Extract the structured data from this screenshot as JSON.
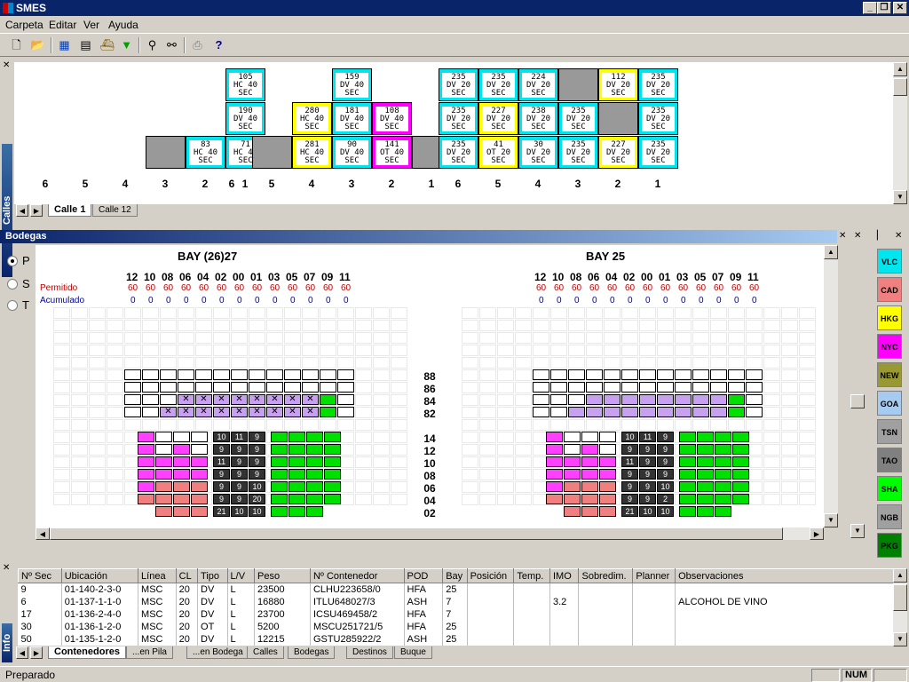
{
  "app": {
    "title": "SMES"
  },
  "window_buttons": {
    "minimize": "_",
    "restore": "❐",
    "close": "✕"
  },
  "menu": [
    "Carpeta",
    "Editar",
    "Ver",
    "Ayuda"
  ],
  "calles": {
    "caption": "Calles",
    "tabs": [
      "Calle 1",
      "Calle 12"
    ],
    "row_numbers": [
      "6",
      "5",
      "4",
      "3",
      "2",
      "1"
    ],
    "bays": [
      {
        "cells": [
          {
            "col": 1,
            "row": 0,
            "text": [
              "105",
              "HC 40",
              "SEC"
            ],
            "color": "c"
          },
          {
            "col": 1,
            "row": 1,
            "text": [
              "190",
              "DV 40",
              "SEC"
            ],
            "color": "c"
          },
          {
            "col": 1,
            "row": 2,
            "text": [
              "71",
              "HC 40",
              "SEC"
            ],
            "color": "c"
          },
          {
            "col": 2,
            "row": 2,
            "text": [
              "83",
              "HC 40",
              "SEC"
            ],
            "color": "c"
          },
          {
            "col": 3,
            "row": 2,
            "text": [
              "",
              "",
              ""
            ],
            "color": "g"
          }
        ]
      },
      {
        "cells": [
          {
            "col": 3,
            "row": 0,
            "text": [
              "159",
              "DV 40",
              "SEC"
            ],
            "color": "c"
          },
          {
            "col": 3,
            "row": 1,
            "text": [
              "181",
              "DV 40",
              "SEC"
            ],
            "color": "c"
          },
          {
            "col": 3,
            "row": 2,
            "text": [
              "90",
              "DV 40",
              "SEC"
            ],
            "color": "c"
          },
          {
            "col": 4,
            "row": 1,
            "text": [
              "280",
              "HC 40",
              "SEC"
            ],
            "color": "y"
          },
          {
            "col": 4,
            "row": 2,
            "text": [
              "281",
              "HC 40",
              "SEC"
            ],
            "color": "y"
          },
          {
            "col": 2,
            "row": 1,
            "text": [
              "108",
              "DV 40",
              "SEC"
            ],
            "color": "m"
          },
          {
            "col": 2,
            "row": 2,
            "text": [
              "141",
              "OT 40",
              "SEC"
            ],
            "color": "m"
          },
          {
            "col": 5,
            "row": 2,
            "text": [
              "",
              "",
              ""
            ],
            "color": "g"
          },
          {
            "col": 1,
            "row": 2,
            "text": [
              "",
              "",
              ""
            ],
            "color": "g"
          }
        ]
      },
      {
        "cells": [
          {
            "col": 6,
            "row": 0,
            "text": [
              "235",
              "DV 20",
              "SEC"
            ],
            "color": "c"
          },
          {
            "col": 5,
            "row": 0,
            "text": [
              "235",
              "DV 20",
              "SEC"
            ],
            "color": "c"
          },
          {
            "col": 4,
            "row": 0,
            "text": [
              "224",
              "DV 20",
              "SEC"
            ],
            "color": "c"
          },
          {
            "col": 3,
            "row": 0,
            "text": [
              "",
              "",
              ""
            ],
            "color": "g"
          },
          {
            "col": 2,
            "row": 0,
            "text": [
              "112",
              "DV 20",
              "SEC"
            ],
            "color": "y"
          },
          {
            "col": 1,
            "row": 0,
            "text": [
              "235",
              "DV 20",
              "SEC"
            ],
            "color": "c"
          },
          {
            "col": 6,
            "row": 1,
            "text": [
              "235",
              "DV 20",
              "SEC"
            ],
            "color": "c"
          },
          {
            "col": 5,
            "row": 1,
            "text": [
              "227",
              "DV 20",
              "SEC"
            ],
            "color": "y"
          },
          {
            "col": 4,
            "row": 1,
            "text": [
              "238",
              "DV 20",
              "SEC"
            ],
            "color": "c"
          },
          {
            "col": 3,
            "row": 1,
            "text": [
              "235",
              "DV 20",
              "SEC"
            ],
            "color": "c"
          },
          {
            "col": 2,
            "row": 1,
            "text": [
              "",
              "",
              ""
            ],
            "color": "g"
          },
          {
            "col": 1,
            "row": 1,
            "text": [
              "235",
              "DV 20",
              "SEC"
            ],
            "color": "c"
          },
          {
            "col": 6,
            "row": 2,
            "text": [
              "235",
              "DV 20",
              "SEC"
            ],
            "color": "c"
          },
          {
            "col": 5,
            "row": 2,
            "text": [
              "41",
              "OT 20",
              "SEC"
            ],
            "color": "y"
          },
          {
            "col": 4,
            "row": 2,
            "text": [
              "30",
              "DV 20",
              "SEC"
            ],
            "color": "c"
          },
          {
            "col": 3,
            "row": 2,
            "text": [
              "235",
              "DV 20",
              "SEC"
            ],
            "color": "c"
          },
          {
            "col": 2,
            "row": 2,
            "text": [
              "227",
              "DV 20",
              "SEC"
            ],
            "color": "y"
          },
          {
            "col": 1,
            "row": 2,
            "text": [
              "235",
              "DV 20",
              "SEC"
            ],
            "color": "c"
          }
        ]
      }
    ]
  },
  "bodegas": {
    "title": "Bodegas",
    "radios": [
      {
        "label": "P",
        "checked": true
      },
      {
        "label": "S",
        "checked": false
      },
      {
        "label": "T",
        "checked": false
      }
    ],
    "permitido_label": "Permitido",
    "acumulado_label": "Acumulado",
    "tier_labels_deck": [
      "88",
      "86",
      "84",
      "82"
    ],
    "tier_labels_hold": [
      "14",
      "12",
      "10",
      "08",
      "06",
      "04",
      "02"
    ],
    "bays": [
      {
        "title": "BAY (26)27",
        "rows": [
          "12",
          "10",
          "08",
          "06",
          "04",
          "02",
          "00",
          "01",
          "03",
          "05",
          "07",
          "09",
          "11"
        ],
        "permitido": [
          "60",
          "60",
          "60",
          "60",
          "60",
          "60",
          "60",
          "60",
          "60",
          "60",
          "60",
          "60",
          "60"
        ],
        "acumulado": [
          "0",
          "0",
          "0",
          "0",
          "0",
          "0",
          "0",
          "0",
          "0",
          "0",
          "0",
          "0",
          "0"
        ],
        "hold_numbers": [
          [
            "10",
            "11",
            "9"
          ],
          [
            "9",
            "9",
            "9"
          ],
          [
            "11",
            "9",
            "9"
          ],
          [
            "9",
            "9",
            "9"
          ],
          [
            "9",
            "9",
            "10"
          ],
          [
            "9",
            "9",
            "20"
          ],
          [
            "21",
            "10",
            "10"
          ]
        ]
      },
      {
        "title": "BAY 25",
        "rows": [
          "12",
          "10",
          "08",
          "06",
          "04",
          "02",
          "00",
          "01",
          "03",
          "05",
          "07",
          "09",
          "11"
        ],
        "permitido": [
          "60",
          "60",
          "60",
          "60",
          "60",
          "60",
          "60",
          "60",
          "60",
          "60",
          "60",
          "60",
          "60"
        ],
        "acumulado": [
          "0",
          "0",
          "0",
          "0",
          "0",
          "0",
          "0",
          "0",
          "0",
          "0",
          "0",
          "0",
          "0"
        ],
        "hold_numbers": [
          [
            "10",
            "11",
            "9"
          ],
          [
            "9",
            "9",
            "9"
          ],
          [
            "11",
            "9",
            "9"
          ],
          [
            "9",
            "9",
            "9"
          ],
          [
            "9",
            "9",
            "10"
          ],
          [
            "9",
            "9",
            "2"
          ],
          [
            "21",
            "10",
            "10"
          ]
        ]
      }
    ]
  },
  "palette": [
    {
      "code": "VLC",
      "color": "#00e5ee"
    },
    {
      "code": "CAD",
      "color": "#f08080"
    },
    {
      "code": "HKG",
      "color": "#ffff00"
    },
    {
      "code": "NYC",
      "color": "#ff00ff"
    },
    {
      "code": "NEW",
      "color": "#999933"
    },
    {
      "code": "GOA",
      "color": "#a6caf0"
    },
    {
      "code": "TSN",
      "color": "#a0a0a0"
    },
    {
      "code": "TAO",
      "color": "#808080"
    },
    {
      "code": "SHA",
      "color": "#00ff00"
    },
    {
      "code": "NGB",
      "color": "#a0a0a0"
    },
    {
      "code": "PKG",
      "color": "#008000"
    }
  ],
  "info": {
    "caption": "Info",
    "columns": [
      "Nº Sec",
      "Ubicación",
      "Línea",
      "CL",
      "Tipo",
      "L/V",
      "Peso",
      "Nº Contenedor",
      "POD",
      "Bay",
      "Posición",
      "Temp.",
      "IMO",
      "Sobredim.",
      "Planner",
      "Observaciones"
    ],
    "rows": [
      [
        "9",
        "01-140-2-3-0",
        "MSC",
        "20",
        "DV",
        "L",
        "23500",
        "CLHU223658/0",
        "HFA",
        "25",
        "",
        "",
        "",
        "",
        "",
        ""
      ],
      [
        "6",
        "01-137-1-1-0",
        "MSC",
        "20",
        "DV",
        "L",
        "16880",
        "ITLU648027/3",
        "ASH",
        "7",
        "",
        "",
        "3.2",
        "",
        "",
        "ALCOHOL DE VINO"
      ],
      [
        "17",
        "01-136-2-4-0",
        "MSC",
        "20",
        "DV",
        "L",
        "23700",
        "ICSU469458/2",
        "HFA",
        "7",
        "",
        "",
        "",
        "",
        "",
        ""
      ],
      [
        "30",
        "01-136-1-2-0",
        "MSC",
        "20",
        "OT",
        "L",
        "5200",
        "MSCU251721/5",
        "HFA",
        "25",
        "",
        "",
        "",
        "",
        "",
        ""
      ],
      [
        "50",
        "01-135-1-2-0",
        "MSC",
        "20",
        "DV",
        "L",
        "12215",
        "GSTU285922/2",
        "ASH",
        "25",
        "",
        "",
        "",
        "",
        "",
        ""
      ]
    ],
    "tabs": [
      "Contenedores",
      "...en Pila",
      "...en Bodega",
      "Calles",
      "Bodegas",
      "Destinos",
      "Buque"
    ]
  },
  "status": {
    "text": "Preparado",
    "num": "NUM"
  }
}
